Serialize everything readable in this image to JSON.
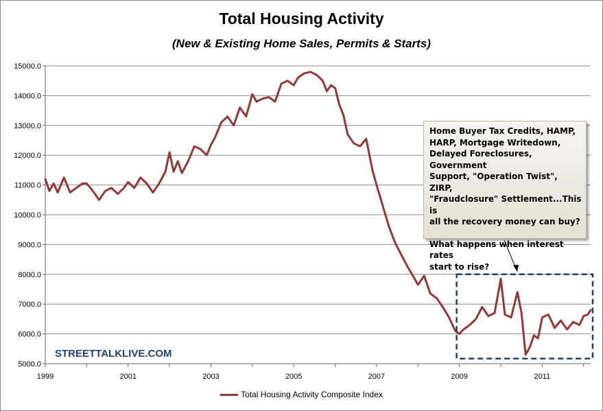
{
  "chart_data": {
    "type": "line",
    "title": "Total Housing Activity",
    "subtitle": "(New & Existing Home Sales, Permits & Starts)",
    "xlabel": "",
    "ylabel": "",
    "x_ticks": [
      "1999",
      "2001",
      "2003",
      "2005",
      "2007",
      "2009",
      "2011"
    ],
    "y_ticks": [
      "5000.0",
      "6000.0",
      "7000.0",
      "8000.0",
      "9000.0",
      "10000.0",
      "11000.0",
      "12000.0",
      "13000.0",
      "14000.0",
      "15000.0"
    ],
    "xlim": [
      1999.0,
      2012.17
    ],
    "ylim": [
      5000,
      15000
    ],
    "grid": true,
    "legend_position": "bottom",
    "series": [
      {
        "name": "Total Housing Activity Composite Index",
        "color": "#953735",
        "x": [
          1999.0,
          1999.1,
          1999.2,
          1999.3,
          1999.45,
          1999.6,
          1999.75,
          1999.9,
          2000.0,
          2000.15,
          2000.3,
          2000.45,
          2000.6,
          2000.75,
          2000.9,
          2001.0,
          2001.15,
          2001.3,
          2001.45,
          2001.6,
          2001.75,
          2001.9,
          2002.0,
          2002.1,
          2002.2,
          2002.3,
          2002.45,
          2002.6,
          2002.75,
          2002.9,
          2003.0,
          2003.1,
          2003.25,
          2003.4,
          2003.55,
          2003.7,
          2003.85,
          2004.0,
          2004.1,
          2004.25,
          2004.4,
          2004.55,
          2004.7,
          2004.85,
          2005.0,
          2005.1,
          2005.25,
          2005.4,
          2005.55,
          2005.7,
          2005.8,
          2005.9,
          2006.0,
          2006.1,
          2006.2,
          2006.3,
          2006.45,
          2006.6,
          2006.75,
          2006.9,
          2007.0,
          2007.15,
          2007.3,
          2007.45,
          2007.6,
          2007.75,
          2007.9,
          2008.0,
          2008.15,
          2008.3,
          2008.45,
          2008.6,
          2008.75,
          2008.9,
          2009.0,
          2009.1,
          2009.25,
          2009.4,
          2009.55,
          2009.7,
          2009.85,
          2010.0,
          2010.1,
          2010.25,
          2010.4,
          2010.5,
          2010.6,
          2010.7,
          2010.8,
          2010.9,
          2011.0,
          2011.15,
          2011.3,
          2011.45,
          2011.6,
          2011.75,
          2011.9,
          2012.0,
          2012.1,
          2012.17
        ],
        "values": [
          11200,
          10800,
          11050,
          10750,
          11250,
          10750,
          10900,
          11050,
          11050,
          10800,
          10500,
          10800,
          10900,
          10700,
          10900,
          11100,
          10900,
          11250,
          11050,
          10750,
          11050,
          11450,
          12100,
          11450,
          11800,
          11400,
          11800,
          12300,
          12200,
          12000,
          12350,
          12600,
          13100,
          13300,
          13000,
          13600,
          13300,
          14050,
          13800,
          13900,
          13950,
          13800,
          14400,
          14500,
          14350,
          14600,
          14750,
          14800,
          14700,
          14500,
          14150,
          14350,
          14250,
          13700,
          13350,
          12700,
          12400,
          12300,
          12550,
          11500,
          11000,
          10300,
          9600,
          9050,
          8650,
          8250,
          7900,
          7650,
          7950,
          7350,
          7200,
          6900,
          6550,
          6100,
          6000,
          6150,
          6300,
          6500,
          6900,
          6600,
          6700,
          7850,
          6650,
          6550,
          7400,
          6700,
          5300,
          5550,
          5950,
          5850,
          6550,
          6650,
          6200,
          6450,
          6150,
          6400,
          6300,
          6600,
          6650,
          6800
        ]
      }
    ],
    "annotation": {
      "paragraph1": "Home Buyer Tax Credits, HAMP,\nHARP, Mortgage Writedown,\nDelayed Foreclosures, Government\nSupport, \"Operation Twist\", ZIRP,\n\"Fraudclosure\" Settlement...This is\nall the recovery money can buy?",
      "paragraph2": "What happens when interest rates\nstart to rise?"
    },
    "highlight_box": {
      "x_range": [
        2009.0,
        2012.17
      ],
      "y_range": [
        5100,
        8000
      ],
      "style": "dashed",
      "color": "#1f3f60"
    }
  },
  "watermark": "STREETTALKLIVE.COM",
  "colors": {
    "series": "#953735",
    "gridline": "#888888",
    "watermark": "#1f3f77",
    "highlight": "#1f3f60"
  }
}
